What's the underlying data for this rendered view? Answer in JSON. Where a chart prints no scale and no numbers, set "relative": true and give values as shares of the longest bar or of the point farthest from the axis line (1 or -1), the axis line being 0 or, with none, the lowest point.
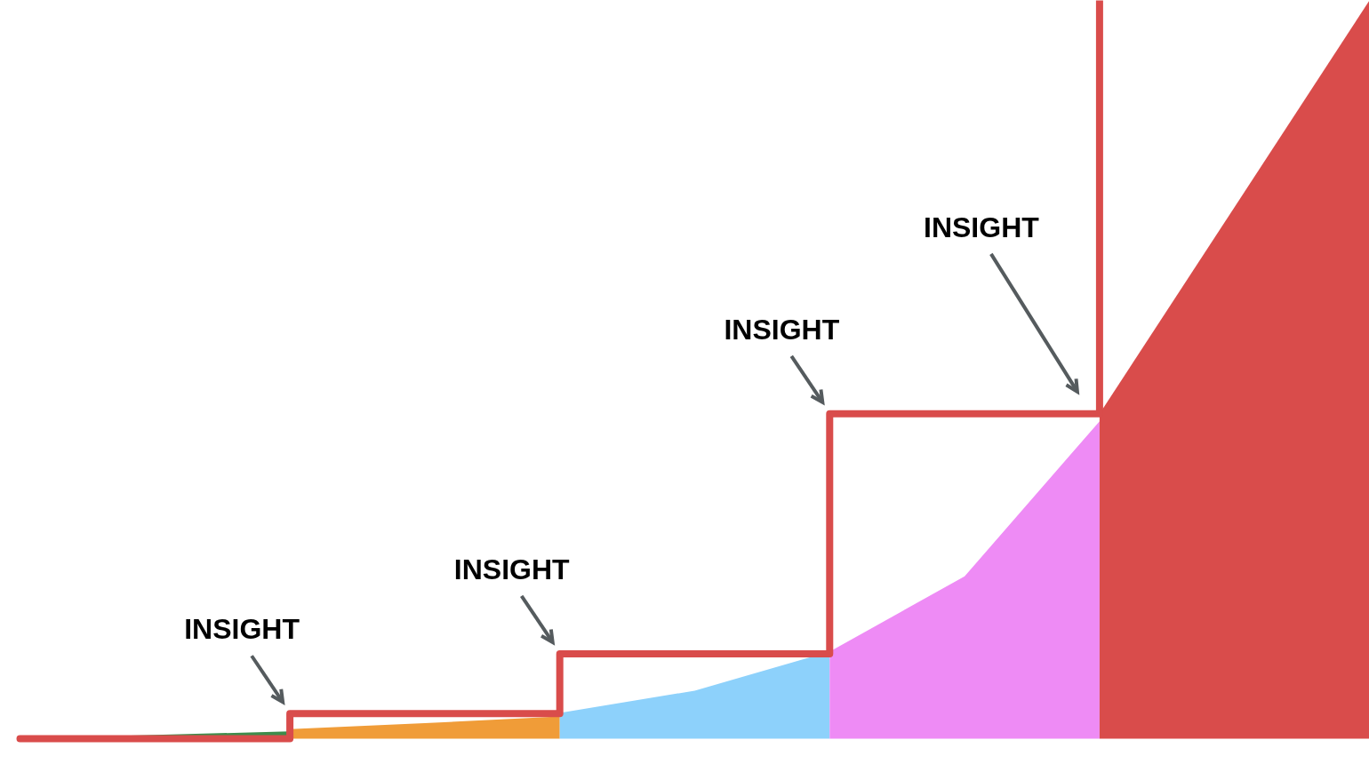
{
  "chart_data": {
    "type": "area",
    "relative": true,
    "categories": [
      null,
      null,
      null,
      null,
      null,
      null,
      null,
      null,
      null,
      null,
      null
    ],
    "series": [
      {
        "color": "#3d8c4b",
        "values": [
          0,
          0.005,
          0.01,
          null,
          null,
          null,
          null,
          null,
          null,
          null,
          null
        ]
      },
      {
        "color": "#f09c38",
        "values": [
          null,
          null,
          0.013,
          0.021,
          0.03,
          null,
          null,
          null,
          null,
          null,
          null
        ]
      },
      {
        "color": "#8dd1fb",
        "values": [
          null,
          null,
          null,
          null,
          0.035,
          0.065,
          0.118,
          null,
          null,
          null,
          null
        ]
      },
      {
        "color": "#ee8bf5",
        "values": [
          null,
          null,
          null,
          null,
          null,
          null,
          0.118,
          0.22,
          0.43,
          null,
          null
        ]
      },
      {
        "color": "#d94c4b",
        "values": [
          null,
          null,
          null,
          null,
          null,
          null,
          null,
          null,
          0.44,
          0.72,
          1.0
        ]
      },
      {
        "type": "step",
        "color": "#d94c4b",
        "values": [
          0,
          0,
          0.034,
          0.034,
          0.115,
          0.115,
          0.44,
          0.44,
          1.0,
          null,
          null
        ]
      }
    ],
    "annotations": [
      "INSIGHT",
      "INSIGHT",
      "INSIGHT",
      "INSIGHT"
    ]
  }
}
